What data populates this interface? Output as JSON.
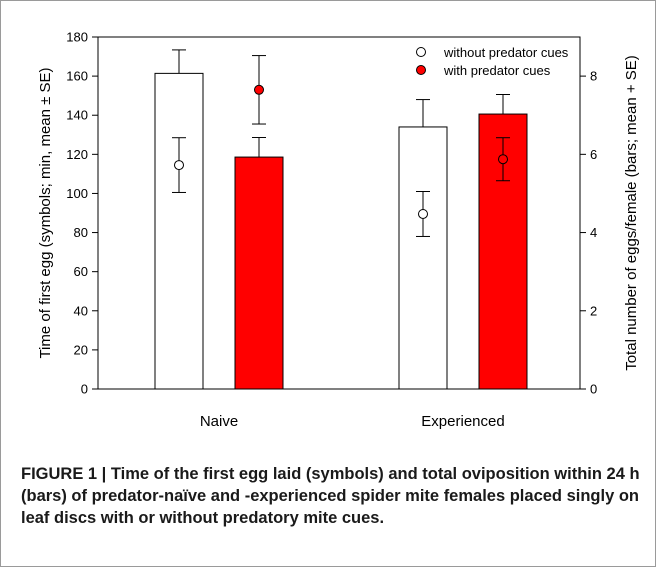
{
  "chart_data": {
    "type": "bar",
    "categories": [
      "Naive",
      "Experienced"
    ],
    "bars": {
      "axis": "right",
      "ylabel": "Total number of eggs/female (bars; mean + SE)",
      "ylim": [
        0,
        9
      ],
      "yticks": [
        0,
        2,
        4,
        6,
        8
      ],
      "series": [
        {
          "name": "without predator cues",
          "values": [
            8.07,
            6.7
          ],
          "se": [
            0.6,
            0.7
          ]
        },
        {
          "name": "with predator cues",
          "values": [
            5.93,
            7.03
          ],
          "se": [
            0.5,
            0.5
          ]
        }
      ]
    },
    "symbols": {
      "axis": "left",
      "ylabel": "Time of first egg (symbols; min, mean ± SE)",
      "ylim": [
        0,
        180
      ],
      "yticks": [
        0,
        20,
        40,
        60,
        80,
        100,
        120,
        140,
        160,
        180
      ],
      "series": [
        {
          "name": "without predator cues",
          "values": [
            114.5,
            89.5
          ],
          "se": [
            14,
            11.5
          ]
        },
        {
          "name": "with predator cues",
          "values": [
            153,
            117.5
          ],
          "se": [
            17.5,
            11
          ]
        }
      ]
    },
    "legend_position": "top-right",
    "grid": false
  },
  "colors": {
    "without_predator_cues": "#ffffff",
    "with_predator_cues": "#ff0000",
    "stroke": "#000000"
  },
  "caption": "FIGURE 1 | Time of the first egg laid (symbols) and total oviposition within 24 h (bars) of predator-naïve and -experienced spider mite females placed singly on leaf discs with or without predatory mite cues."
}
